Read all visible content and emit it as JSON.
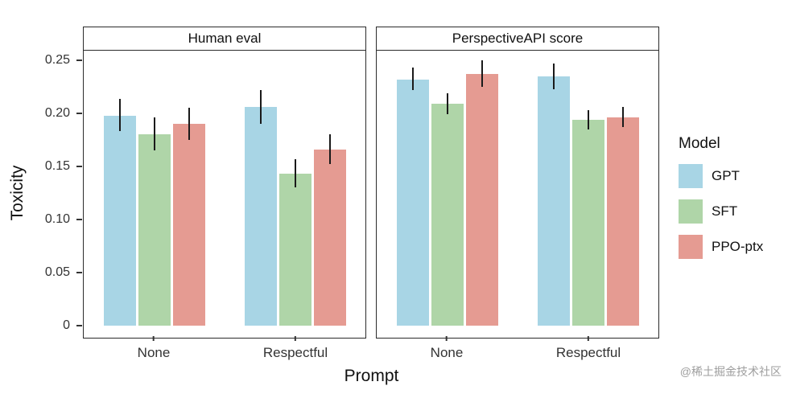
{
  "chart_data": {
    "type": "bar",
    "title": "",
    "xlabel": "Prompt",
    "ylabel": "Toxicity",
    "ylim": [
      0,
      0.27
    ],
    "grid": false,
    "error_bar_color": "#1a1a1a",
    "panel_border_color": "#2b2b2b",
    "yticks": [
      {
        "value": 0,
        "label": "0"
      },
      {
        "value": 0.05,
        "label": "0.05"
      },
      {
        "value": 0.1,
        "label": "0.10"
      },
      {
        "value": 0.15,
        "label": "0.15"
      },
      {
        "value": 0.2,
        "label": "0.20"
      },
      {
        "value": 0.25,
        "label": "0.25"
      }
    ],
    "categories": [
      "None",
      "Respectful"
    ],
    "legend": {
      "title": "Model",
      "position": "right",
      "entries": [
        {
          "label": "GPT",
          "color": "#A8D5E5"
        },
        {
          "label": "SFT",
          "color": "#AFD5A8"
        },
        {
          "label": "PPO-ptx",
          "color": "#E59B92"
        }
      ]
    },
    "facets": [
      {
        "title": "Human eval",
        "groups": [
          {
            "category": "None",
            "bars": [
              {
                "series": "GPT",
                "value": 0.198,
                "lo": 0.183,
                "hi": 0.214
              },
              {
                "series": "SFT",
                "value": 0.18,
                "lo": 0.165,
                "hi": 0.196
              },
              {
                "series": "PPO-ptx",
                "value": 0.19,
                "lo": 0.175,
                "hi": 0.205
              }
            ]
          },
          {
            "category": "Respectful",
            "bars": [
              {
                "series": "GPT",
                "value": 0.206,
                "lo": 0.19,
                "hi": 0.222
              },
              {
                "series": "SFT",
                "value": 0.143,
                "lo": 0.13,
                "hi": 0.157
              },
              {
                "series": "PPO-ptx",
                "value": 0.166,
                "lo": 0.152,
                "hi": 0.18
              }
            ]
          }
        ]
      },
      {
        "title": "PerspectiveAPI score",
        "groups": [
          {
            "category": "None",
            "bars": [
              {
                "series": "GPT",
                "value": 0.232,
                "lo": 0.222,
                "hi": 0.243
              },
              {
                "series": "SFT",
                "value": 0.209,
                "lo": 0.199,
                "hi": 0.219
              },
              {
                "series": "PPO-ptx",
                "value": 0.237,
                "lo": 0.225,
                "hi": 0.25
              }
            ]
          },
          {
            "category": "Respectful",
            "bars": [
              {
                "series": "GPT",
                "value": 0.235,
                "lo": 0.223,
                "hi": 0.247
              },
              {
                "series": "SFT",
                "value": 0.194,
                "lo": 0.185,
                "hi": 0.203
              },
              {
                "series": "PPO-ptx",
                "value": 0.196,
                "lo": 0.187,
                "hi": 0.206
              }
            ]
          }
        ]
      }
    ]
  },
  "watermark": "@稀土掘金技术社区"
}
